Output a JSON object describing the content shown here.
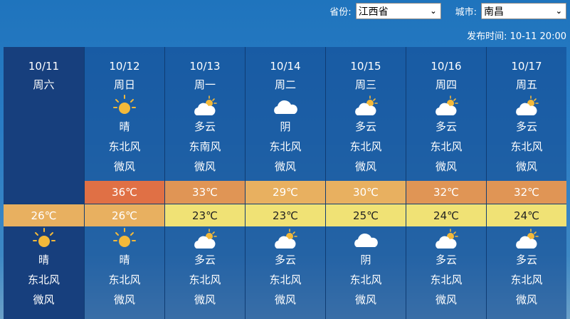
{
  "header": {
    "province_label": "省份:",
    "province_value": "江西省",
    "city_label": "城市:",
    "city_value": "南昌",
    "publish_label": "发布时间:",
    "publish_time": "10-11 20:00"
  },
  "days": [
    {
      "date": "10/11",
      "weekday": "周六",
      "day": null,
      "high": null,
      "low": {
        "text": "26℃",
        "bg": "#e8b060",
        "fg": "#ffffff"
      },
      "night": {
        "icon": "sun-icon",
        "weather": "晴",
        "wind_dir": "东北风",
        "wind_force": "微风"
      }
    },
    {
      "date": "10/12",
      "weekday": "周日",
      "day": {
        "icon": "sun-icon",
        "weather": "晴",
        "wind_dir": "东北风",
        "wind_force": "微风"
      },
      "high": {
        "text": "36℃",
        "bg": "#e07045",
        "fg": "#ffffff"
      },
      "low": {
        "text": "26℃",
        "bg": "#e8b060",
        "fg": "#ffffff"
      },
      "night": {
        "icon": "sun-icon",
        "weather": "晴",
        "wind_dir": "东北风",
        "wind_force": "微风"
      }
    },
    {
      "date": "10/13",
      "weekday": "周一",
      "day": {
        "icon": "partly-cloudy-icon",
        "weather": "多云",
        "wind_dir": "东南风",
        "wind_force": "微风"
      },
      "high": {
        "text": "33℃",
        "bg": "#e09555",
        "fg": "#ffffff"
      },
      "low": {
        "text": "23℃",
        "bg": "#f0e275",
        "fg": "#222222"
      },
      "night": {
        "icon": "partly-cloudy-icon",
        "weather": "多云",
        "wind_dir": "东北风",
        "wind_force": "微风"
      }
    },
    {
      "date": "10/14",
      "weekday": "周二",
      "day": {
        "icon": "cloud-icon",
        "weather": "阴",
        "wind_dir": "东北风",
        "wind_force": "微风"
      },
      "high": {
        "text": "29℃",
        "bg": "#e8b060",
        "fg": "#ffffff"
      },
      "low": {
        "text": "23℃",
        "bg": "#f0e275",
        "fg": "#222222"
      },
      "night": {
        "icon": "partly-cloudy-icon",
        "weather": "多云",
        "wind_dir": "东北风",
        "wind_force": "微风"
      }
    },
    {
      "date": "10/15",
      "weekday": "周三",
      "day": {
        "icon": "partly-cloudy-icon",
        "weather": "多云",
        "wind_dir": "东北风",
        "wind_force": "微风"
      },
      "high": {
        "text": "30℃",
        "bg": "#e8b060",
        "fg": "#ffffff"
      },
      "low": {
        "text": "25℃",
        "bg": "#f0e275",
        "fg": "#222222"
      },
      "night": {
        "icon": "cloud-icon",
        "weather": "阴",
        "wind_dir": "东北风",
        "wind_force": "微风"
      }
    },
    {
      "date": "10/16",
      "weekday": "周四",
      "day": {
        "icon": "partly-cloudy-icon",
        "weather": "多云",
        "wind_dir": "东北风",
        "wind_force": "微风"
      },
      "high": {
        "text": "32℃",
        "bg": "#e09555",
        "fg": "#ffffff"
      },
      "low": {
        "text": "24℃",
        "bg": "#f0e275",
        "fg": "#222222"
      },
      "night": {
        "icon": "partly-cloudy-icon",
        "weather": "多云",
        "wind_dir": "东北风",
        "wind_force": "微风"
      }
    },
    {
      "date": "10/17",
      "weekday": "周五",
      "day": {
        "icon": "partly-cloudy-icon",
        "weather": "多云",
        "wind_dir": "东北风",
        "wind_force": "微风"
      },
      "high": {
        "text": "32℃",
        "bg": "#e09555",
        "fg": "#ffffff"
      },
      "low": {
        "text": "24℃",
        "bg": "#f0e275",
        "fg": "#222222"
      },
      "night": {
        "icon": "partly-cloudy-icon",
        "weather": "多云",
        "wind_dir": "东北风",
        "wind_force": "微风"
      }
    }
  ]
}
